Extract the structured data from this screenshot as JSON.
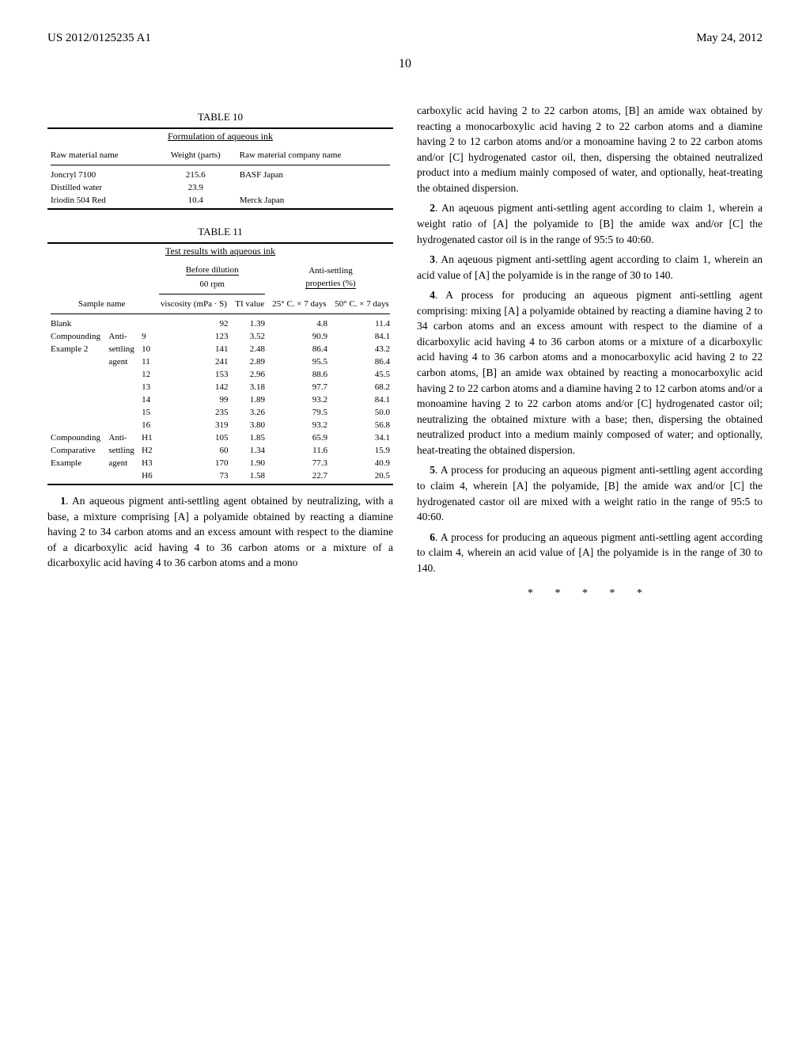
{
  "header": {
    "left": "US 2012/0125235 A1",
    "right": "May 24, 2012"
  },
  "page_number": "10",
  "table10": {
    "label": "TABLE 10",
    "caption": "Formulation of aqueous ink",
    "columns": [
      "Raw material name",
      "Weight (parts)",
      "Raw material company name"
    ],
    "rows": [
      [
        "Joncryl 7100",
        "215.6",
        "BASF Japan"
      ],
      [
        "Distilled water",
        "23.9",
        ""
      ],
      [
        "Iriodin 504 Red",
        "10.4",
        "Merck Japan"
      ]
    ]
  },
  "table11": {
    "label": "TABLE 11",
    "caption": "Test results with aqueous ink",
    "header_row1": [
      "",
      "",
      "",
      "Before dilution",
      "",
      "Anti-settling",
      ""
    ],
    "header_row2": [
      "",
      "",
      "",
      "60 rpm",
      "",
      "properties (%)",
      ""
    ],
    "header_row3": [
      "Sample name",
      "",
      "",
      "viscosity (mPa · S)",
      "TI value",
      "25° C. × 7 days",
      "50° C. × 7 days"
    ],
    "rows": [
      [
        "Blank",
        "",
        "",
        "92",
        "1.39",
        "4.8",
        "11.4"
      ],
      [
        "Compounding",
        "Anti-",
        "9",
        "123",
        "3.52",
        "90.9",
        "84.1"
      ],
      [
        "Example 2",
        "settling",
        "10",
        "141",
        "2.48",
        "86.4",
        "43.2"
      ],
      [
        "",
        "agent",
        "11",
        "241",
        "2.89",
        "95.5",
        "86.4"
      ],
      [
        "",
        "",
        "12",
        "153",
        "2.96",
        "88.6",
        "45.5"
      ],
      [
        "",
        "",
        "13",
        "142",
        "3.18",
        "97.7",
        "68.2"
      ],
      [
        "",
        "",
        "14",
        "99",
        "1.89",
        "93.2",
        "84.1"
      ],
      [
        "",
        "",
        "15",
        "235",
        "3.26",
        "79.5",
        "50.0"
      ],
      [
        "",
        "",
        "16",
        "319",
        "3.80",
        "93.2",
        "56.8"
      ],
      [
        "Compounding",
        "Anti-",
        "H1",
        "105",
        "1.85",
        "65.9",
        "34.1"
      ],
      [
        "Comparative",
        "settling",
        "H2",
        "60",
        "1.34",
        "11.6",
        "15.9"
      ],
      [
        "Example",
        "agent",
        "H3",
        "170",
        "1.90",
        "77.3",
        "40.9"
      ],
      [
        "",
        "",
        "H6",
        "73",
        "1.58",
        "22.7",
        "20.5"
      ]
    ]
  },
  "claims": {
    "c1": "1. An aqueous pigment anti-settling agent obtained by neutralizing, with a base, a mixture comprising [A] a polyamide obtained by reacting a diamine having 2 to 34 carbon atoms and an excess amount with respect to the diamine of a dicarboxylic acid having 4 to 36 carbon atoms or a mixture of a dicarboxylic acid having 4 to 36 carbon atoms and a mono",
    "c1_cont": "carboxylic acid having 2 to 22 carbon atoms, [B] an amide wax obtained by reacting a monocarboxylic acid having 2 to 22 carbon atoms and a diamine having 2 to 12 carbon atoms and/or a monoamine having 2 to 22 carbon atoms and/or [C] hydrogenated castor oil, then, dispersing the obtained neutralized product into a medium mainly composed of water, and optionally, heat-treating the obtained dispersion.",
    "c2": "2. An aqeuous pigment anti-settling agent according to claim 1, wherein a weight ratio of [A] the polyamide to [B] the amide wax and/or [C] the hydrogenated castor oil is in the range of 95:5 to 40:60.",
    "c3": "3. An aqeuous pigment anti-settling agent according to claim 1, wherein an acid value of [A] the polyamide is in the range of 30 to 140.",
    "c4": "4. A process for producing an aqueous pigment anti-settling agent comprising: mixing [A] a polyamide obtained by reacting a diamine having 2 to 34 carbon atoms and an excess amount with respect to the diamine of a dicarboxylic acid having 4 to 36 carbon atoms or a mixture of a dicarboxylic acid having 4 to 36 carbon atoms and a monocarboxylic acid having 2 to 22 carbon atoms, [B] an amide wax obtained by reacting a monocarboxylic acid having 2 to 22 carbon atoms and a diamine having 2 to 12 carbon atoms and/or a monoamine having 2 to 22 carbon atoms and/or [C] hydrogenated castor oil; neutralizing the obtained mixture with a base; then, dispersing the obtained neutralized product into a medium mainly composed of water; and optionally, heat-treating the obtained dispersion.",
    "c5": "5. A process for producing an aqueous pigment anti-settling agent according to claim 4, wherein [A] the polyamide, [B] the amide wax and/or [C] the hydrogenated castor oil are mixed with a weight ratio in the range of 95:5 to 40:60.",
    "c6": "6. A process for producing an aqueous pigment anti-settling agent according to claim 4, wherein an acid value of [A] the polyamide is in the range of 30 to 140."
  },
  "asterisks": "* * * * *"
}
